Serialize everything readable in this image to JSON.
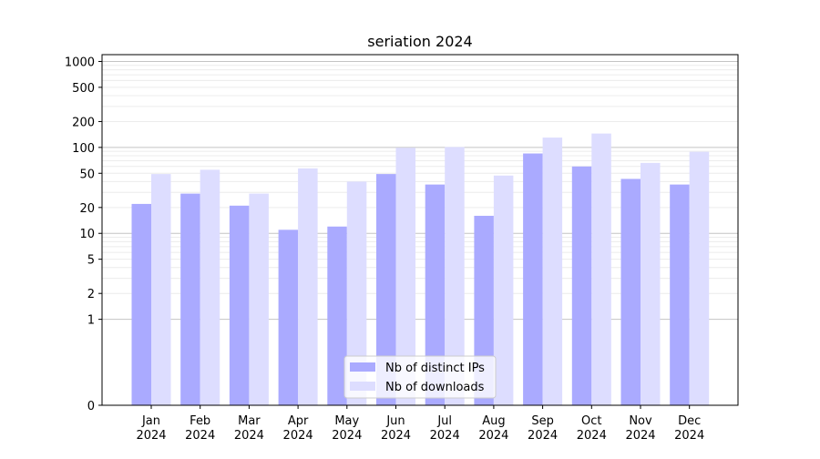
{
  "chart_data": {
    "type": "bar",
    "title": "seriation 2024",
    "xlabel": "",
    "ylabel": "",
    "y_scale": "symlog",
    "ylim": [
      0,
      1200
    ],
    "grid": true,
    "legend_position": "lower-center",
    "categories": [
      "Jan\n2024",
      "Feb\n2024",
      "Mar\n2024",
      "Apr\n2024",
      "May\n2024",
      "Jun\n2024",
      "Jul\n2024",
      "Aug\n2024",
      "Sep\n2024",
      "Oct\n2024",
      "Nov\n2024",
      "Dec\n2024"
    ],
    "y_ticks": [
      0,
      1,
      2,
      5,
      10,
      20,
      50,
      100,
      200,
      500,
      1000
    ],
    "series": [
      {
        "name": "Nb of distinct IPs",
        "color": "#aaaaff",
        "values": [
          22,
          29,
          21,
          11,
          12,
          49,
          37,
          16,
          85,
          60,
          43,
          37
        ]
      },
      {
        "name": "Nb of downloads",
        "color": "#ddddff",
        "values": [
          49,
          55,
          29,
          57,
          40,
          99,
          101,
          47,
          130,
          145,
          66,
          89
        ]
      }
    ]
  }
}
